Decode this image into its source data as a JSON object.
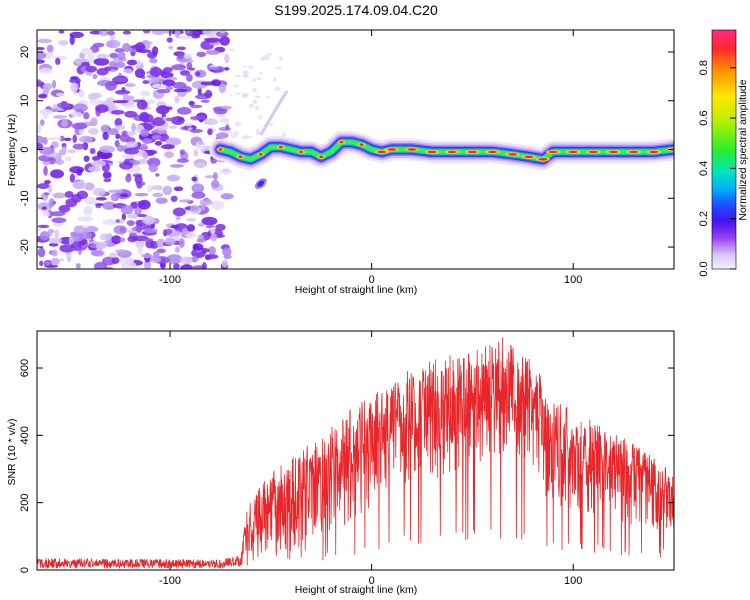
{
  "title": "S199.2025.174.09.04.C20",
  "chart_data": [
    {
      "type": "heatmap",
      "xlabel": "Height of straight line (km)",
      "ylabel": "Frequency (Hz)",
      "xlim": [
        -166,
        150
      ],
      "ylim": [
        -24.5,
        24.5
      ],
      "xticks": [
        -100,
        0,
        100
      ],
      "yticks": [
        -20,
        -10,
        0,
        10,
        20
      ],
      "noise_region_x": [
        -166,
        -73
      ],
      "ridge": [
        {
          "x": -75,
          "y": 0.0
        },
        {
          "x": -70,
          "y": -0.5
        },
        {
          "x": -65,
          "y": -1.5
        },
        {
          "x": -60,
          "y": -2.0
        },
        {
          "x": -55,
          "y": -1.0
        },
        {
          "x": -50,
          "y": 0.5
        },
        {
          "x": -45,
          "y": 0.5
        },
        {
          "x": -40,
          "y": 0.0
        },
        {
          "x": -35,
          "y": -0.5
        },
        {
          "x": -30,
          "y": -0.5
        },
        {
          "x": -25,
          "y": -1.5
        },
        {
          "x": -20,
          "y": -0.5
        },
        {
          "x": -15,
          "y": 1.5
        },
        {
          "x": -10,
          "y": 1.5
        },
        {
          "x": -5,
          "y": 1.0
        },
        {
          "x": 0,
          "y": 0.0
        },
        {
          "x": 5,
          "y": -0.5
        },
        {
          "x": 10,
          "y": 0.0
        },
        {
          "x": 20,
          "y": 0.0
        },
        {
          "x": 30,
          "y": -0.5
        },
        {
          "x": 40,
          "y": -0.5
        },
        {
          "x": 50,
          "y": -0.5
        },
        {
          "x": 60,
          "y": -0.5
        },
        {
          "x": 70,
          "y": -1.0
        },
        {
          "x": 78,
          "y": -1.5
        },
        {
          "x": 85,
          "y": -2.0
        },
        {
          "x": 90,
          "y": -0.5
        },
        {
          "x": 100,
          "y": -0.5
        },
        {
          "x": 110,
          "y": -0.5
        },
        {
          "x": 120,
          "y": -0.5
        },
        {
          "x": 130,
          "y": -0.5
        },
        {
          "x": 140,
          "y": -0.5
        },
        {
          "x": 150,
          "y": 0.0
        }
      ],
      "colorbar": {
        "label": "Normalized spectral amplitude",
        "range": [
          0.0,
          0.95
        ],
        "ticks": [
          0.0,
          0.2,
          0.4,
          0.6,
          0.8
        ]
      }
    },
    {
      "type": "line",
      "xlabel": "Height of straight line (km)",
      "ylabel": "SNR (10 * v/v)",
      "xlim": [
        -166,
        150
      ],
      "ylim": [
        0,
        710
      ],
      "xticks": [
        -100,
        0,
        100
      ],
      "yticks": [
        0,
        200,
        400,
        600
      ],
      "color": "#e8262a",
      "envelope": [
        {
          "x": -166,
          "lo": 5,
          "hi": 35
        },
        {
          "x": -75,
          "lo": 5,
          "hi": 30
        },
        {
          "x": -65,
          "lo": 10,
          "hi": 45
        },
        {
          "x": -62,
          "lo": 40,
          "hi": 180
        },
        {
          "x": -55,
          "lo": 50,
          "hi": 250
        },
        {
          "x": -45,
          "lo": 40,
          "hi": 320
        },
        {
          "x": -35,
          "lo": 50,
          "hi": 360
        },
        {
          "x": -25,
          "lo": 80,
          "hi": 400
        },
        {
          "x": -15,
          "lo": 120,
          "hi": 460
        },
        {
          "x": -5,
          "lo": 170,
          "hi": 500
        },
        {
          "x": 10,
          "lo": 230,
          "hi": 560
        },
        {
          "x": 25,
          "lo": 260,
          "hi": 620
        },
        {
          "x": 40,
          "lo": 280,
          "hi": 640
        },
        {
          "x": 55,
          "lo": 300,
          "hi": 660
        },
        {
          "x": 65,
          "lo": 310,
          "hi": 700
        },
        {
          "x": 75,
          "lo": 300,
          "hi": 650
        },
        {
          "x": 83,
          "lo": 280,
          "hi": 600
        },
        {
          "x": 87,
          "lo": 180,
          "hi": 520
        },
        {
          "x": 100,
          "lo": 170,
          "hi": 480
        },
        {
          "x": 115,
          "lo": 150,
          "hi": 420
        },
        {
          "x": 130,
          "lo": 130,
          "hi": 380
        },
        {
          "x": 150,
          "lo": 110,
          "hi": 300
        }
      ]
    }
  ]
}
